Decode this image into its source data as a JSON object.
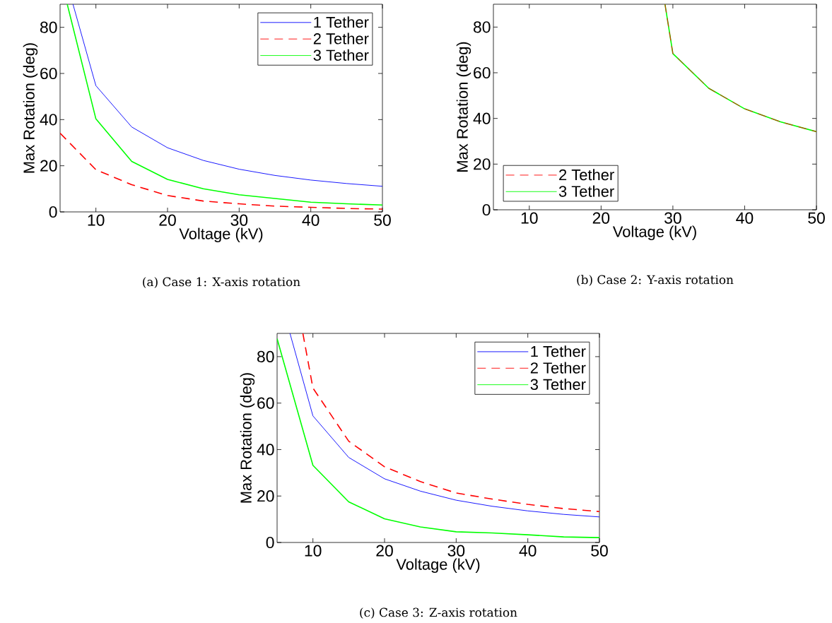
{
  "chart_data": [
    {
      "type": "line",
      "xlabel": "Voltage (kV)",
      "ylabel": "Max Rotation (deg)",
      "xlim": [
        5,
        50
      ],
      "ylim": [
        0,
        90
      ],
      "xticks": [
        10,
        20,
        30,
        40,
        50
      ],
      "yticks": [
        0,
        20,
        40,
        60,
        80
      ],
      "legend": "top right",
      "annotations": [
        "(a) Case 1: X-axis rotation"
      ],
      "series": [
        {
          "name": "1 Tether",
          "color": "#0000ff",
          "line_style": "solid",
          "x": [
            6.8,
            10,
            15,
            20,
            25,
            30,
            35,
            40,
            45,
            50
          ],
          "values": [
            90,
            54.7,
            36.8,
            27.8,
            22.3,
            18.5,
            15.8,
            13.8,
            12.3,
            11.1
          ]
        },
        {
          "name": "2 Tether",
          "color": "#ff0000",
          "line_style": "dashed",
          "x": [
            5,
            10,
            15,
            20,
            25,
            30,
            35,
            40,
            45,
            50
          ],
          "values": [
            34.1,
            18.3,
            11.8,
            7.1,
            4.7,
            3.5,
            2.5,
            2.0,
            1.5,
            1.2
          ]
        },
        {
          "name": "3 Tether",
          "color": "#00ff00",
          "line_style": "solid",
          "x": [
            6.0,
            10,
            15,
            20,
            25,
            30,
            35,
            40,
            45,
            50
          ],
          "values": [
            90,
            40.3,
            21.9,
            14.1,
            10.0,
            7.4,
            5.8,
            4.2,
            3.5,
            3.0
          ]
        }
      ]
    },
    {
      "type": "line",
      "xlabel": "Voltage (kV)",
      "ylabel": "Max Rotation (deg)",
      "xlim": [
        5,
        50
      ],
      "ylim": [
        0,
        90
      ],
      "xticks": [
        10,
        20,
        30,
        40,
        50
      ],
      "yticks": [
        0,
        20,
        40,
        60,
        80
      ],
      "legend": "bottom left",
      "annotations": [
        "(b) Case 2: Y-axis rotation"
      ],
      "series": [
        {
          "name": "2 Tether",
          "color": "#ff0000",
          "line_style": "dashed",
          "x": [
            28.9,
            30,
            35,
            40,
            45,
            50
          ],
          "values": [
            90,
            68.4,
            53.2,
            44.2,
            38.5,
            34.2
          ]
        },
        {
          "name": "3 Tether",
          "color": "#00ff00",
          "line_style": "solid",
          "x": [
            28.9,
            30,
            35,
            40,
            45,
            50
          ],
          "values": [
            90,
            68.4,
            53.2,
            44.2,
            38.5,
            34.2
          ]
        }
      ]
    },
    {
      "type": "line",
      "xlabel": "Voltage (kV)",
      "ylabel": "Max Rotation (deg)",
      "xlim": [
        5,
        50
      ],
      "ylim": [
        0,
        90
      ],
      "xticks": [
        10,
        20,
        30,
        40,
        50
      ],
      "yticks": [
        0,
        20,
        40,
        60,
        80
      ],
      "legend": "top right",
      "annotations": [
        "(c) Case 3: Z-axis rotation"
      ],
      "series": [
        {
          "name": "1 Tether",
          "color": "#0000ff",
          "line_style": "solid",
          "x": [
            6.8,
            10,
            15,
            20,
            25,
            30,
            35,
            40,
            45,
            50
          ],
          "values": [
            90,
            54.5,
            36.6,
            27.4,
            22.1,
            18.2,
            15.6,
            13.6,
            12.1,
            11.0
          ]
        },
        {
          "name": "2 Tether",
          "color": "#ff0000",
          "line_style": "dashed",
          "x": [
            8.6,
            10,
            15,
            20,
            25,
            30,
            35,
            40,
            45,
            50
          ],
          "values": [
            90,
            66.5,
            43.6,
            32.6,
            26.2,
            21.3,
            18.7,
            16.4,
            14.6,
            13.3
          ]
        },
        {
          "name": "3 Tether",
          "color": "#00ff00",
          "line_style": "solid",
          "x": [
            5,
            10,
            15,
            20,
            25,
            30,
            35,
            40,
            45,
            50
          ],
          "values": [
            87.7,
            33.2,
            17.5,
            10.2,
            6.7,
            4.6,
            4.1,
            3.3,
            2.4,
            2.1
          ]
        }
      ]
    }
  ]
}
